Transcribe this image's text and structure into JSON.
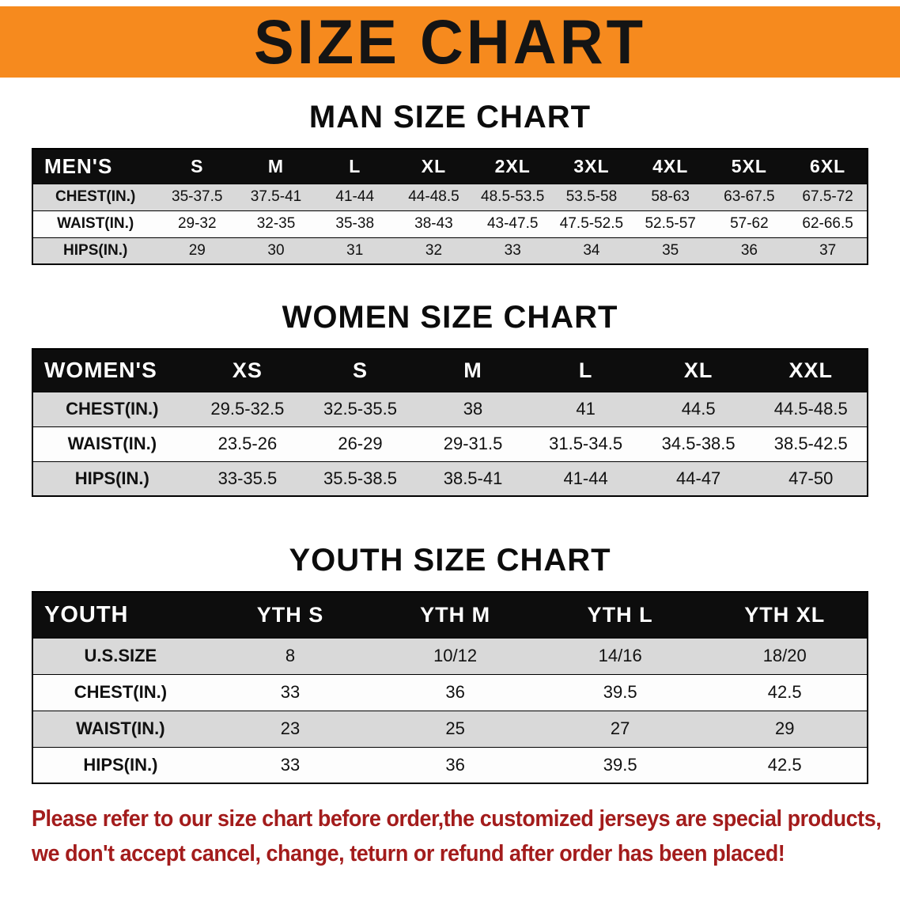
{
  "banner": {
    "title": "SIZE CHART"
  },
  "colors": {
    "banner_bg": "#f68a1e",
    "header_bg": "#0d0d0d",
    "row_alt": "#d9d9d9",
    "row_base": "#fdfdfd",
    "note_red": "#a31c1c"
  },
  "sections": {
    "men": {
      "heading": "MAN SIZE CHART",
      "table": {
        "header": [
          "MEN'S",
          "S",
          "M",
          "L",
          "XL",
          "2XL",
          "3XL",
          "4XL",
          "5XL",
          "6XL"
        ],
        "rows": [
          [
            "CHEST(IN.)",
            "35-37.5",
            "37.5-41",
            "41-44",
            "44-48.5",
            "48.5-53.5",
            "53.5-58",
            "58-63",
            "63-67.5",
            "67.5-72"
          ],
          [
            "WAIST(IN.)",
            "29-32",
            "32-35",
            "35-38",
            "38-43",
            "43-47.5",
            "47.5-52.5",
            "52.5-57",
            "57-62",
            "62-66.5"
          ],
          [
            "HIPS(IN.)",
            "29",
            "30",
            "31",
            "32",
            "33",
            "34",
            "35",
            "36",
            "37"
          ]
        ]
      }
    },
    "women": {
      "heading": "WOMEN SIZE CHART",
      "table": {
        "header": [
          "WOMEN'S",
          "XS",
          "S",
          "M",
          "L",
          "XL",
          "XXL"
        ],
        "rows": [
          [
            "CHEST(IN.)",
            "29.5-32.5",
            "32.5-35.5",
            "38",
            "41",
            "44.5",
            "44.5-48.5"
          ],
          [
            "WAIST(IN.)",
            "23.5-26",
            "26-29",
            "29-31.5",
            "31.5-34.5",
            "34.5-38.5",
            "38.5-42.5"
          ],
          [
            "HIPS(IN.)",
            "33-35.5",
            "35.5-38.5",
            "38.5-41",
            "41-44",
            "44-47",
            "47-50"
          ]
        ]
      }
    },
    "youth": {
      "heading": "YOUTH SIZE CHART",
      "table": {
        "header": [
          "YOUTH",
          "YTH S",
          "YTH M",
          "YTH L",
          "YTH XL"
        ],
        "rows": [
          [
            "U.S.SIZE",
            "8",
            "10/12",
            "14/16",
            "18/20"
          ],
          [
            "CHEST(IN.)",
            "33",
            "36",
            "39.5",
            "42.5"
          ],
          [
            "WAIST(IN.)",
            "23",
            "25",
            "27",
            "29"
          ],
          [
            "HIPS(IN.)",
            "33",
            "36",
            "39.5",
            "42.5"
          ]
        ]
      }
    }
  },
  "note": {
    "line1": "Please refer to our size chart before order,the customized jerseys are special products,",
    "line2": "we don't accept cancel, change, teturn or refund after order has been placed!"
  }
}
